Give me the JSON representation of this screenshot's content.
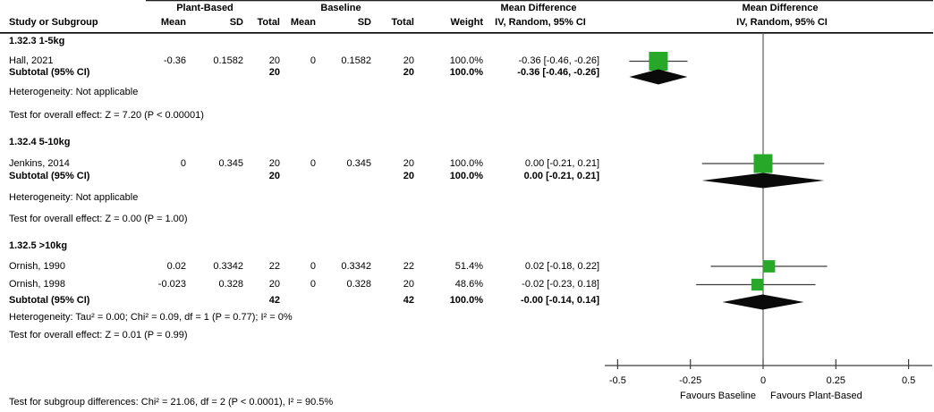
{
  "header": {
    "study_col": "Study or Subgroup",
    "groups": [
      {
        "label": "Plant-Based",
        "cols": [
          "Mean",
          "SD",
          "Total"
        ]
      },
      {
        "label": "Baseline",
        "cols": [
          "Mean",
          "SD",
          "Total"
        ]
      }
    ],
    "weight_col": "Weight",
    "effect_stat": {
      "title": "Mean Difference",
      "subtitle": "IV, Random, 95% CI"
    },
    "effect_graph": {
      "title": "Mean Difference",
      "subtitle": "IV, Random, 95% CI"
    }
  },
  "chart_data": {
    "type": "forest",
    "effect_measure": "Mean Difference",
    "method": "IV, Random, 95% CI",
    "axis": {
      "min": -0.5,
      "max": 0.5,
      "tick_values": [
        -0.5,
        -0.25,
        0,
        0.25,
        0.5
      ],
      "tick_labels": [
        "-0.5",
        "-0.25",
        "0",
        "0.25",
        "0.5"
      ],
      "favours_left": "Favours Baseline",
      "favours_right": "Favours Plant-Based"
    },
    "subgroups": [
      {
        "label": "1.32.3 1-5kg",
        "studies": [
          {
            "name": "Hall, 2021",
            "exp_mean": "-0.36",
            "exp_sd": "0.1582",
            "exp_total": "20",
            "ctl_mean": "0",
            "ctl_sd": "0.1582",
            "ctl_total": "20",
            "weight": "100.0%",
            "ci_label": "-0.36 [-0.46, -0.26]",
            "estimate": -0.36,
            "ci_low": -0.46,
            "ci_high": -0.26,
            "weight_pct": 100.0
          }
        ],
        "subtotal": {
          "name": "Subtotal (95% CI)",
          "exp_total": "20",
          "ctl_total": "20",
          "weight": "100.0%",
          "ci_label": "-0.36 [-0.46, -0.26]",
          "estimate": -0.36,
          "ci_low": -0.46,
          "ci_high": -0.26
        },
        "heterogeneity": "Heterogeneity: Not applicable",
        "overall_test": "Test for overall effect: Z = 7.20 (P < 0.00001)"
      },
      {
        "label": "1.32.4 5-10kg",
        "studies": [
          {
            "name": "Jenkins, 2014",
            "exp_mean": "0",
            "exp_sd": "0.345",
            "exp_total": "20",
            "ctl_mean": "0",
            "ctl_sd": "0.345",
            "ctl_total": "20",
            "weight": "100.0%",
            "ci_label": "0.00 [-0.21, 0.21]",
            "estimate": 0.0,
            "ci_low": -0.21,
            "ci_high": 0.21,
            "weight_pct": 100.0
          }
        ],
        "subtotal": {
          "name": "Subtotal (95% CI)",
          "exp_total": "20",
          "ctl_total": "20",
          "weight": "100.0%",
          "ci_label": "0.00 [-0.21, 0.21]",
          "estimate": 0.0,
          "ci_low": -0.21,
          "ci_high": 0.21
        },
        "heterogeneity": "Heterogeneity: Not applicable",
        "overall_test": "Test for overall effect: Z = 0.00 (P = 1.00)"
      },
      {
        "label": "1.32.5 >10kg",
        "studies": [
          {
            "name": "Ornish, 1990",
            "exp_mean": "0.02",
            "exp_sd": "0.3342",
            "exp_total": "22",
            "ctl_mean": "0",
            "ctl_sd": "0.3342",
            "ctl_total": "22",
            "weight": "51.4%",
            "ci_label": "0.02 [-0.18, 0.22]",
            "estimate": 0.02,
            "ci_low": -0.18,
            "ci_high": 0.22,
            "weight_pct": 51.4
          },
          {
            "name": "Ornish, 1998",
            "exp_mean": "-0.023",
            "exp_sd": "0.328",
            "exp_total": "20",
            "ctl_mean": "0",
            "ctl_sd": "0.328",
            "ctl_total": "20",
            "weight": "48.6%",
            "ci_label": "-0.02 [-0.23, 0.18]",
            "estimate": -0.02,
            "ci_low": -0.23,
            "ci_high": 0.18,
            "weight_pct": 48.6
          }
        ],
        "subtotal": {
          "name": "Subtotal (95% CI)",
          "exp_total": "42",
          "ctl_total": "42",
          "weight": "100.0%",
          "ci_label": "-0.00 [-0.14, 0.14]",
          "estimate": -0.002,
          "ci_low": -0.14,
          "ci_high": 0.14
        },
        "heterogeneity": "Heterogeneity: Tau² = 0.00; Chi² = 0.09, df = 1 (P = 0.77); I² = 0%",
        "overall_test": "Test for overall effect: Z = 0.01 (P = 0.99)"
      }
    ],
    "footer": "Test for subgroup differences: Chi² = 21.06, df = 2 (P < 0.0001), I² = 90.5%"
  },
  "colors": {
    "square_green": "#28a828",
    "diamond_black": "#0a0a0a",
    "line": "#3d3d3d",
    "rule": "#000000",
    "text": "#000000",
    "background": "#ffffff"
  }
}
